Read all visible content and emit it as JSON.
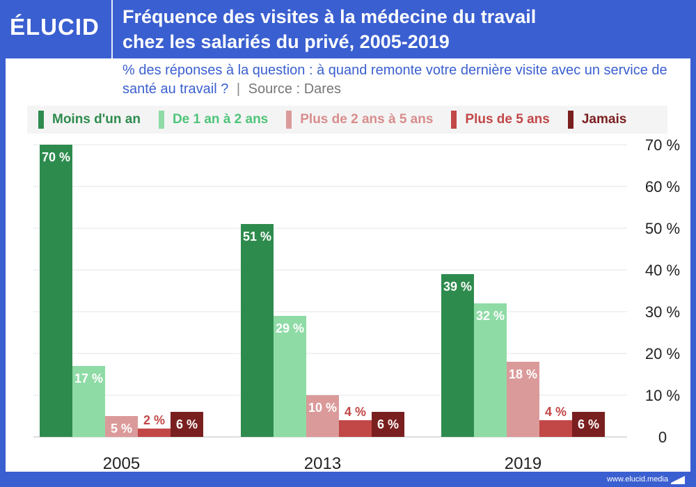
{
  "header": {
    "logo": "ÉLUCID",
    "title_line1": "Fréquence des visites à la médecine du travail",
    "title_line2": "chez les salariés du privé, 2005-2019"
  },
  "subtitle": {
    "text": "% des réponses à la question : à quand remonte votre dernière visite avec un service de santé au travail ?",
    "separator": "|",
    "source": "Source : Dares"
  },
  "footer": {
    "url": "www.elucid.media"
  },
  "colors": {
    "brand": "#3a5fd0",
    "series": [
      "#2e8b4e",
      "#8fdba6",
      "#db9a9a",
      "#c24747",
      "#7a1f1f"
    ],
    "legend_text": [
      "#2e8b4e",
      "#4fc47a",
      "#d98c8c",
      "#c24747",
      "#7a1f1f"
    ]
  },
  "chart_data": {
    "type": "bar",
    "categories": [
      "2005",
      "2013",
      "2019"
    ],
    "series": [
      {
        "name": "Moins d'un an",
        "values": [
          70,
          51,
          39
        ],
        "labels": [
          "70 %",
          "51 %",
          "39 %"
        ]
      },
      {
        "name": "De 1 an à 2 ans",
        "values": [
          17,
          29,
          32
        ],
        "labels": [
          "17 %",
          "29 %",
          "32 %"
        ]
      },
      {
        "name": "Plus de 2 ans à 5 ans",
        "values": [
          5,
          10,
          18
        ],
        "labels": [
          "5 %",
          "10 %",
          "18 %"
        ]
      },
      {
        "name": "Plus de 5 ans",
        "values": [
          2,
          4,
          4
        ],
        "labels": [
          "2 %",
          "4 %",
          "4 %"
        ]
      },
      {
        "name": "Jamais",
        "values": [
          6,
          6,
          6
        ],
        "labels": [
          "6 %",
          "6 %",
          "6 %"
        ]
      }
    ],
    "ylim": [
      0,
      70
    ],
    "yticks": [
      "0",
      "10 %",
      "20 %",
      "30 %",
      "40 %",
      "50 %",
      "60 %",
      "70 %"
    ],
    "ytick_values": [
      0,
      10,
      20,
      30,
      40,
      50,
      60,
      70
    ],
    "y_axis_side": "right",
    "grid": true,
    "legend": "top"
  }
}
